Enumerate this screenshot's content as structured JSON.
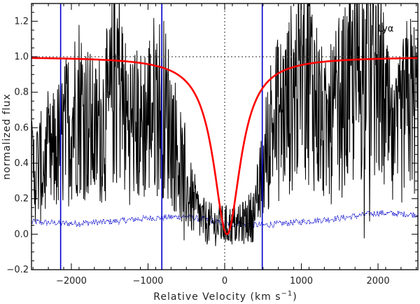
{
  "chart_data": {
    "type": "line",
    "xlabel": "Relative Velocity (km s",
    "xlabel_sup": "−1",
    "xlabel_close": ")",
    "ylabel": "normalized flux",
    "annotation": "Lyα",
    "xlim": [
      -2520,
      2520
    ],
    "ylim": [
      -0.2,
      1.3
    ],
    "xticks": [
      -2000,
      -1000,
      0,
      1000,
      2000
    ],
    "xtick_labels": [
      "−2000",
      "−1000",
      "0",
      "1000",
      "2000"
    ],
    "yticks": [
      -0.2,
      0.0,
      0.2,
      0.4,
      0.6,
      0.8,
      1.0,
      1.2
    ],
    "ytick_labels": [
      "−0.2",
      "0.0",
      "0.2",
      "0.4",
      "0.6",
      "0.8",
      "1.0",
      "1.2"
    ],
    "reference_lines": {
      "y": 1.0,
      "x": 0
    },
    "fit": {
      "profile": "lorentzian-absorption",
      "center": 30,
      "width": 215,
      "color": "#ff0000"
    },
    "flux_envelope": {
      "x": [
        -2520,
        -2300,
        -2100,
        -1900,
        -1700,
        -1500,
        -1400,
        -1300,
        -1100,
        -900,
        -800,
        -700,
        -500,
        -300,
        -150,
        0,
        200,
        400,
        500,
        600,
        800,
        1000,
        1100,
        1300,
        1500,
        1700,
        1850,
        2000,
        2200,
        2400,
        2520
      ],
      "y": [
        0.35,
        0.4,
        0.55,
        0.75,
        0.55,
        0.7,
        0.98,
        0.65,
        0.6,
        0.75,
        0.72,
        0.6,
        0.25,
        0.08,
        0.05,
        0.05,
        0.05,
        0.12,
        0.35,
        0.6,
        0.7,
        0.9,
        0.92,
        0.55,
        0.7,
        0.85,
        0.95,
        0.9,
        0.45,
        0.75,
        0.7
      ],
      "color": "#000000"
    },
    "error_spectrum": {
      "x": [
        -2520,
        -2000,
        -1500,
        -1000,
        -500,
        0,
        500,
        1000,
        1500,
        2000,
        2520
      ],
      "y": [
        0.07,
        0.06,
        0.07,
        0.09,
        0.1,
        0.06,
        0.05,
        0.07,
        0.09,
        0.12,
        0.11
      ],
      "color": "#0000cc"
    },
    "vertical_markers": [
      -2140,
      -820,
      490
    ],
    "marker_color": "#0000cc"
  }
}
